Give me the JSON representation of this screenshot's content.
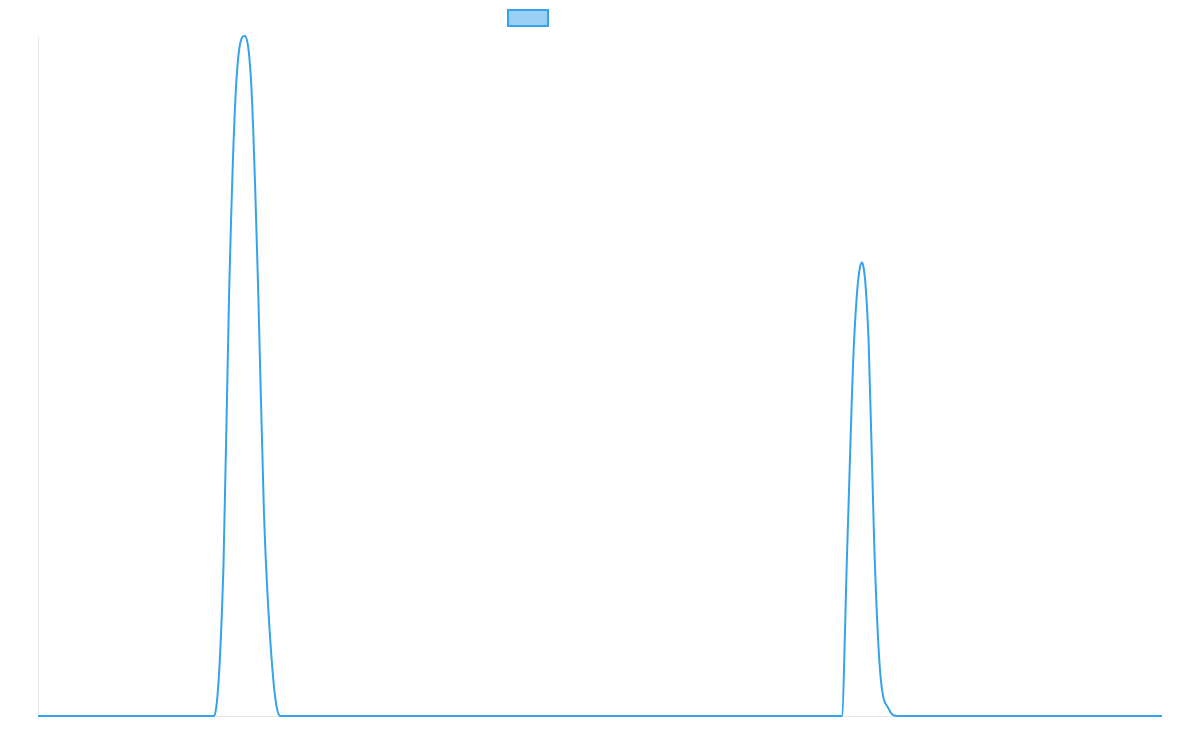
{
  "chart_data": {
    "type": "line",
    "title": "",
    "xlabel": "",
    "ylabel": "",
    "xlim": [
      0,
      100
    ],
    "ylim": [
      0,
      100
    ],
    "grid": false,
    "legend": {
      "position": "top-center",
      "entries": [
        {
          "label": "",
          "color": "#36A2EB"
        }
      ]
    },
    "series": [
      {
        "color": "#36A2EB",
        "fill": "#9AD0F5",
        "x": [
          0,
          15.65,
          16.5,
          17.0,
          17.6,
          18.4,
          19.0,
          19.6,
          20.1,
          20.9,
          21.55,
          22.2,
          70.55,
          71.5,
          72.0,
          72.6,
          73.3,
          73.9,
          74.4,
          74.9,
          75.7,
          76.5,
          100
        ],
        "y": [
          0,
          0,
          22,
          62,
          92,
          100,
          92,
          62,
          30,
          6,
          0,
          0,
          0,
          0,
          25,
          55,
          66.7,
          55,
          25,
          7,
          1,
          0,
          0
        ]
      }
    ]
  }
}
